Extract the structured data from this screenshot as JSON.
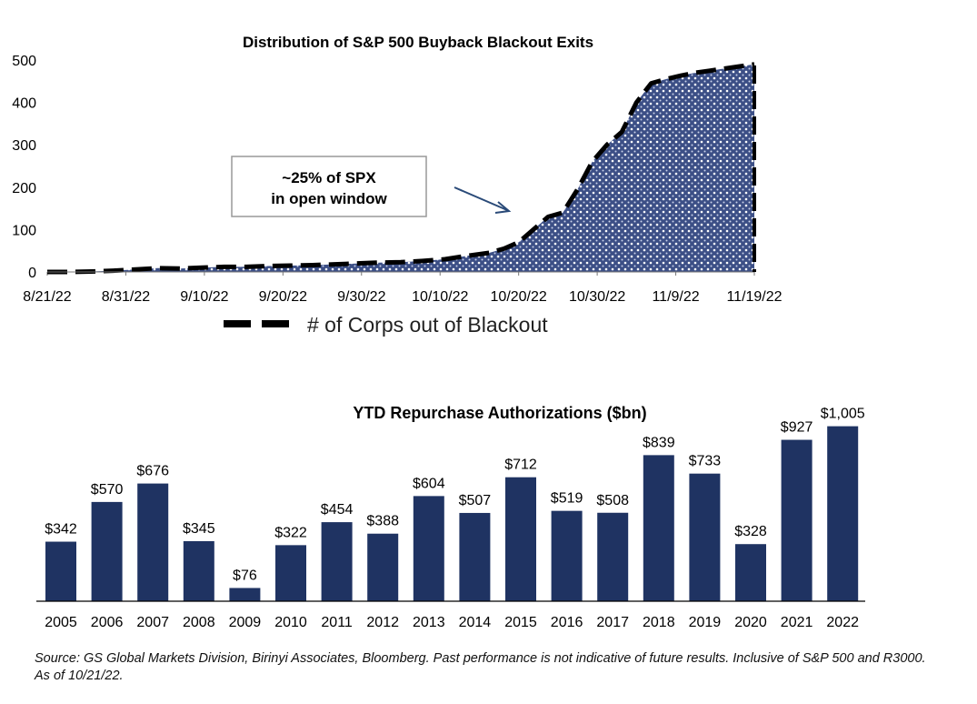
{
  "chart_data": [
    {
      "type": "area",
      "title": "Distribution of S&P 500 Buyback Blackout Exits",
      "xlabel": "",
      "ylabel": "",
      "x_tick_labels": [
        "8/21/22",
        "8/31/22",
        "9/10/22",
        "9/20/22",
        "9/30/22",
        "10/10/22",
        "10/20/22",
        "10/30/22",
        "11/9/22",
        "11/19/22"
      ],
      "y_tick_labels": [
        "0",
        "100",
        "200",
        "300",
        "400",
        "500"
      ],
      "ylim": [
        0,
        500
      ],
      "x_day_range": [
        0,
        96
      ],
      "series": [
        {
          "name": "# of Corps out of Blackout",
          "day_offsets": [
            0,
            3,
            6,
            9,
            12,
            15,
            18,
            21,
            24,
            27,
            30,
            33,
            36,
            39,
            42,
            45,
            48,
            51,
            54,
            57,
            60,
            62,
            64,
            66,
            68,
            70,
            72,
            74,
            76,
            78,
            80,
            82,
            84,
            86,
            88,
            90,
            92,
            94,
            96
          ],
          "values": [
            0,
            0,
            1,
            3,
            6,
            9,
            8,
            10,
            12,
            12,
            14,
            15,
            16,
            18,
            20,
            22,
            23,
            26,
            30,
            38,
            45,
            55,
            70,
            100,
            130,
            140,
            195,
            260,
            300,
            330,
            400,
            445,
            455,
            463,
            470,
            475,
            480,
            485,
            490
          ]
        }
      ],
      "annotation": {
        "line1": "~25% of SPX",
        "line2": "in open window"
      },
      "legend": "bottom",
      "grid": false
    },
    {
      "type": "bar",
      "title": "YTD Repurchase Authorizations ($bn)",
      "categories": [
        "2005",
        "2006",
        "2007",
        "2008",
        "2009",
        "2010",
        "2011",
        "2012",
        "2013",
        "2014",
        "2015",
        "2016",
        "2017",
        "2018",
        "2019",
        "2020",
        "2021",
        "2022"
      ],
      "values": [
        342,
        570,
        676,
        345,
        76,
        322,
        454,
        388,
        604,
        507,
        712,
        519,
        508,
        839,
        733,
        328,
        927,
        1005
      ],
      "data_labels": [
        "$342",
        "$570",
        "$676",
        "$345",
        "$76",
        "$322",
        "$454",
        "$388",
        "$604",
        "$507",
        "$712",
        "$519",
        "$508",
        "$839",
        "$733",
        "$328",
        "$927",
        "$1,005"
      ],
      "ylim": [
        0,
        1050
      ],
      "xlabel": "",
      "ylabel": "",
      "color": "#1f3362",
      "grid": false
    }
  ],
  "source_note": "Source: GS Global Markets Division, Birinyi Associates, Bloomberg.  Past performance is not indicative of future results. Inclusive of S&P 500 and R3000. As of 10/21/22."
}
